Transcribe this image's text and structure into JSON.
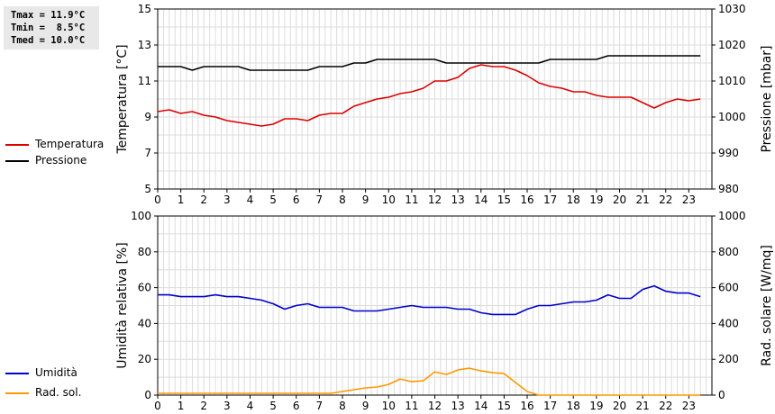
{
  "stats": {
    "tmax": "Tmax = 11.9°C",
    "tmin": "Tmin =  8.5°C",
    "tmed": "Tmed = 10.0°C"
  },
  "chart_data": [
    {
      "type": "line",
      "x_ticks": [
        0,
        1,
        2,
        3,
        4,
        5,
        6,
        7,
        8,
        9,
        10,
        11,
        12,
        13,
        14,
        15,
        16,
        17,
        18,
        19,
        20,
        21,
        22,
        23
      ],
      "xlim": [
        0,
        24
      ],
      "ylabel": "Temperatura [°C]",
      "ylim": [
        5,
        15
      ],
      "y_ticks": [
        5,
        7,
        9,
        11,
        13,
        15
      ],
      "y2label": "Pressione [mbar]",
      "y2lim": [
        980,
        1030
      ],
      "y2_ticks": [
        980,
        990,
        1000,
        1010,
        1020,
        1030
      ],
      "grid": true,
      "legend_position": "left",
      "series": [
        {
          "name": "Temperatura",
          "axis": "left",
          "color": "#dd0000",
          "x": [
            0,
            0.5,
            1,
            1.5,
            2,
            2.5,
            3,
            3.5,
            4,
            4.5,
            5,
            5.5,
            6,
            6.5,
            7,
            7.5,
            8,
            8.5,
            9,
            9.5,
            10,
            10.5,
            11,
            11.5,
            12,
            12.5,
            13,
            13.5,
            14,
            14.5,
            15,
            15.5,
            16,
            16.5,
            17,
            17.5,
            18,
            18.5,
            19,
            19.5,
            20,
            20.5,
            21,
            21.5,
            22,
            22.5,
            23,
            23.5
          ],
          "values": [
            9.3,
            9.4,
            9.2,
            9.3,
            9.1,
            9.0,
            8.8,
            8.7,
            8.6,
            8.5,
            8.6,
            8.9,
            8.9,
            8.8,
            9.1,
            9.2,
            9.2,
            9.6,
            9.8,
            10.0,
            10.1,
            10.3,
            10.4,
            10.6,
            11.0,
            11.0,
            11.2,
            11.7,
            11.9,
            11.8,
            11.8,
            11.6,
            11.3,
            10.9,
            10.7,
            10.6,
            10.4,
            10.4,
            10.2,
            10.1,
            10.1,
            10.1,
            9.8,
            9.5,
            9.8,
            10.0,
            9.9,
            10.0
          ]
        },
        {
          "name": "Pressione",
          "axis": "right",
          "color": "#000000",
          "x": [
            0,
            0.5,
            1,
            1.5,
            2,
            2.5,
            3,
            3.5,
            4,
            4.5,
            5,
            5.5,
            6,
            6.5,
            7,
            7.5,
            8,
            8.5,
            9,
            9.5,
            10,
            10.5,
            11,
            11.5,
            12,
            12.5,
            13,
            13.5,
            14,
            14.5,
            15,
            15.5,
            16,
            16.5,
            17,
            17.5,
            18,
            18.5,
            19,
            19.5,
            20,
            20.5,
            21,
            21.5,
            22,
            22.5,
            23,
            23.5
          ],
          "values": [
            1014,
            1014,
            1014,
            1013,
            1014,
            1014,
            1014,
            1014,
            1013,
            1013,
            1013,
            1013,
            1013,
            1013,
            1014,
            1014,
            1014,
            1015,
            1015,
            1016,
            1016,
            1016,
            1016,
            1016,
            1016,
            1015,
            1015,
            1015,
            1015,
            1015,
            1015,
            1015,
            1015,
            1015,
            1016,
            1016,
            1016,
            1016,
            1016,
            1017,
            1017,
            1017,
            1017,
            1017,
            1017,
            1017,
            1017,
            1017
          ]
        }
      ]
    },
    {
      "type": "line",
      "x_ticks": [
        0,
        1,
        2,
        3,
        4,
        5,
        6,
        7,
        8,
        9,
        10,
        11,
        12,
        13,
        14,
        15,
        16,
        17,
        18,
        19,
        20,
        21,
        22,
        23
      ],
      "xlim": [
        0,
        24
      ],
      "ylabel": "Umidità relativa [%]",
      "ylim": [
        0,
        100
      ],
      "y_ticks": [
        0,
        20,
        40,
        60,
        80,
        100
      ],
      "y2label": "Rad. solare [W/mq]",
      "y2lim": [
        0,
        1000
      ],
      "y2_ticks": [
        0,
        200,
        400,
        600,
        800,
        1000
      ],
      "grid": true,
      "legend_position": "left",
      "series": [
        {
          "name": "Umidità",
          "axis": "left",
          "color": "#0000cc",
          "x": [
            0,
            0.5,
            1,
            1.5,
            2,
            2.5,
            3,
            3.5,
            4,
            4.5,
            5,
            5.5,
            6,
            6.5,
            7,
            7.5,
            8,
            8.5,
            9,
            9.5,
            10,
            10.5,
            11,
            11.5,
            12,
            12.5,
            13,
            13.5,
            14,
            14.5,
            15,
            15.5,
            16,
            16.5,
            17,
            17.5,
            18,
            18.5,
            19,
            19.5,
            20,
            20.5,
            21,
            21.5,
            22,
            22.5,
            23,
            23.5
          ],
          "values": [
            56,
            56,
            55,
            55,
            55,
            56,
            55,
            55,
            54,
            53,
            51,
            48,
            50,
            51,
            49,
            49,
            49,
            47,
            47,
            47,
            48,
            49,
            50,
            49,
            49,
            49,
            48,
            48,
            46,
            45,
            45,
            45,
            48,
            50,
            50,
            51,
            52,
            52,
            53,
            56,
            54,
            54,
            59,
            61,
            58,
            57,
            57,
            55
          ]
        },
        {
          "name": "Rad. sol.",
          "axis": "right",
          "color": "#ff9900",
          "x": [
            0,
            0.5,
            1,
            1.5,
            2,
            2.5,
            3,
            3.5,
            4,
            4.5,
            5,
            5.5,
            6,
            6.5,
            7,
            7.5,
            8,
            8.5,
            9,
            9.5,
            10,
            10.5,
            11,
            11.5,
            12,
            12.5,
            13,
            13.5,
            14,
            14.5,
            15,
            15.5,
            16,
            16.5,
            17,
            17.5,
            18,
            18.5,
            19,
            19.5,
            20,
            20.5,
            21,
            21.5,
            22,
            22.5,
            23,
            23.5
          ],
          "values": [
            10,
            10,
            10,
            10,
            10,
            10,
            10,
            10,
            10,
            10,
            10,
            10,
            10,
            10,
            10,
            10,
            20,
            30,
            40,
            45,
            60,
            90,
            75,
            80,
            130,
            115,
            140,
            150,
            135,
            125,
            120,
            70,
            20,
            0,
            0,
            0,
            0,
            0,
            0,
            0,
            0,
            0,
            0,
            0,
            0,
            0,
            0,
            0
          ]
        }
      ]
    }
  ]
}
